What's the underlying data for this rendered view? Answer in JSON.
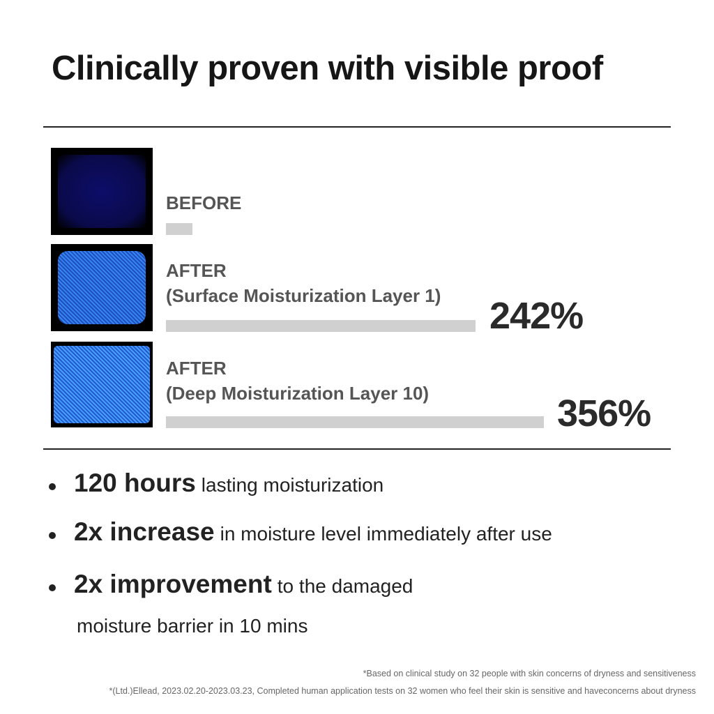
{
  "title": "Clinically proven with visible proof",
  "results": [
    {
      "label_1": "BEFORE",
      "label_2": "",
      "bar_level": 0.07,
      "percent": ""
    },
    {
      "label_1": "AFTER",
      "label_2": "(Surface Moisturization Layer 1)",
      "bar_level": 0.82,
      "percent": "242%"
    },
    {
      "label_1": "AFTER",
      "label_2": "(Deep Moisturization Layer 10)",
      "bar_level": 1.0,
      "percent": "356%"
    }
  ],
  "colors": {
    "bar": "#d0d0d0",
    "label": "#555555",
    "image_glow": "#3a8cff"
  },
  "bullets": [
    {
      "bold": "120 hours",
      "text": "lasting moisturization"
    },
    {
      "bold": "2x increase",
      "text": "in moisture level immediately after use"
    },
    {
      "bold": "2x improvement",
      "text": "to the damaged",
      "continuation": "moisture barrier in 10 mins"
    }
  ],
  "footnotes": [
    "*Based on clinical study on 32 people with skin concerns of dryness and sensitiveness",
    "*(Ltd.)Ellead, 2023.02.20-2023.03.23, Completed human application tests on 32 women who feel their skin is sensitive and haveconcerns about dryness"
  ]
}
